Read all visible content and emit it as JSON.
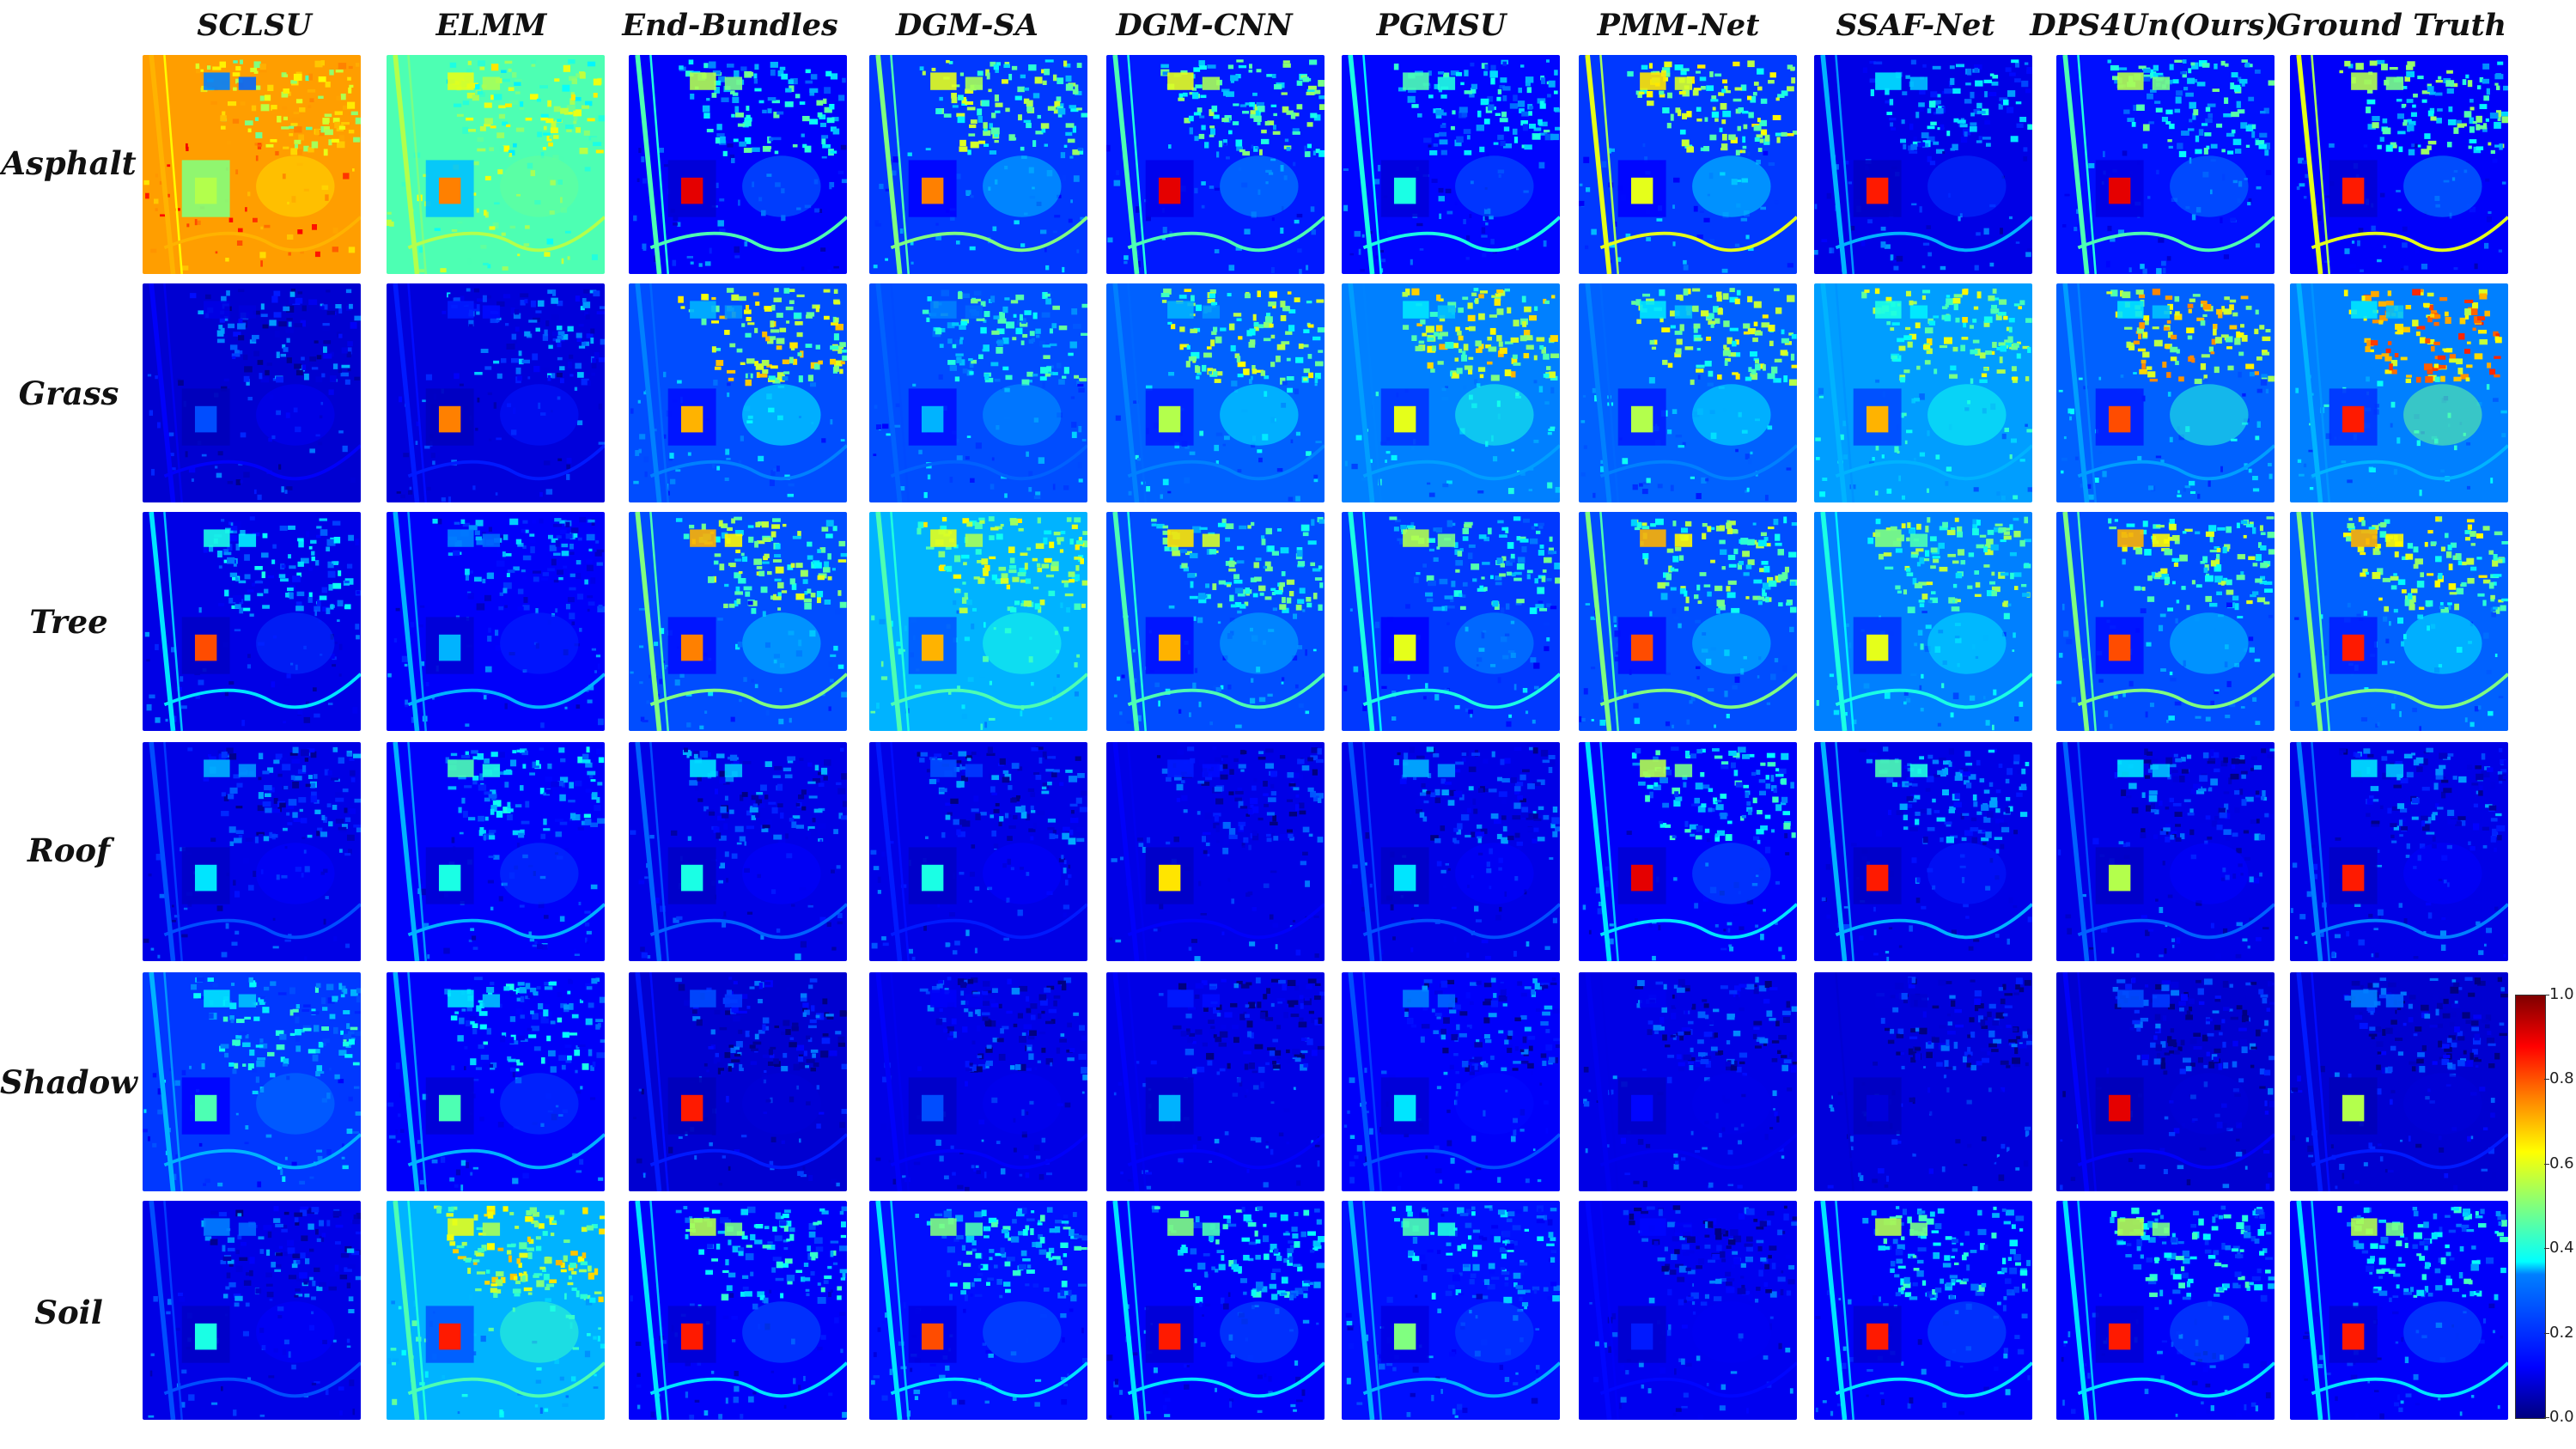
{
  "columns": [
    "SCLSU",
    "ELMM",
    "End-Bundles",
    "DGM-SA",
    "DGM-CNN",
    "PGMSU",
    "PMM-Net",
    "SSAF-Net",
    "DPS4Un(Ours)",
    "Ground Truth"
  ],
  "rows": [
    "Asphalt",
    "Grass",
    "Tree",
    "Roof",
    "Shadow",
    "Soil"
  ],
  "colorbar": {
    "colormap": "jet",
    "ticks": [
      "0.0",
      "0.2",
      "0.4",
      "0.6",
      "0.8",
      "1.0"
    ]
  },
  "tile_image": "abundance-map"
}
